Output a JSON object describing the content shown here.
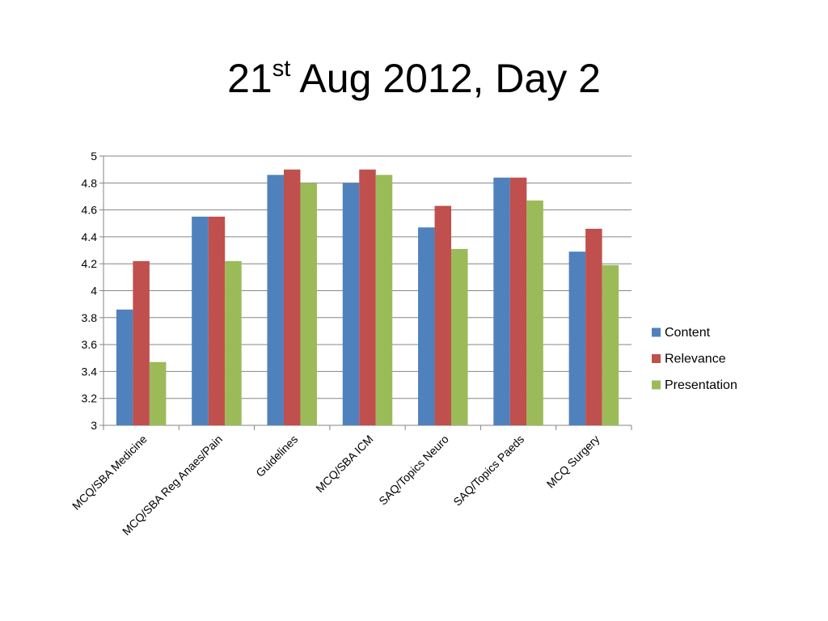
{
  "slide": {
    "title_main": "21",
    "title_sup": "st",
    "title_rest": " Aug 2012, Day 2"
  },
  "chart_data": {
    "type": "bar",
    "title": "21st Aug 2012, Day 2",
    "categories": [
      "MCQ/SBA Medicine",
      "MCQ/SBA Reg Anaes/Pain",
      "Guidelines",
      "MCQ/SBA ICM",
      "SAQ/Topics Neuro",
      "SAQ/Topics Paeds",
      "MCQ Surgery"
    ],
    "series": [
      {
        "name": "Content",
        "color": "#4f81bd",
        "values": [
          3.86,
          4.55,
          4.86,
          4.8,
          4.47,
          4.84,
          4.29
        ]
      },
      {
        "name": "Relevance",
        "color": "#c0504d",
        "values": [
          4.22,
          4.55,
          4.9,
          4.9,
          4.63,
          4.84,
          4.46
        ]
      },
      {
        "name": "Presentation",
        "color": "#9bbb59",
        "values": [
          3.47,
          4.22,
          4.8,
          4.86,
          4.31,
          4.67,
          4.19
        ]
      }
    ],
    "yticks": [
      "3",
      "3.2",
      "3.4",
      "3.6",
      "3.8",
      "4",
      "4.2",
      "4.4",
      "4.6",
      "4.8",
      "5"
    ],
    "ylim": [
      3,
      5
    ],
    "grid": true,
    "legend_position": "right"
  }
}
